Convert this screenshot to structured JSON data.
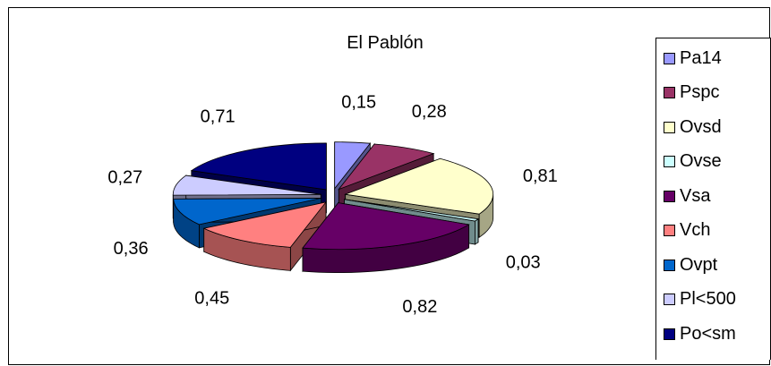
{
  "chart_data": {
    "type": "pie",
    "title": "El Pablón",
    "categories": [
      "Pa14",
      "Pspc",
      "Ovsd",
      "Ovse",
      "Vsa",
      "Vch",
      "Ovpt",
      "Pl<500",
      "Po<sm"
    ],
    "values": [
      0.15,
      0.28,
      0.81,
      0.03,
      0.82,
      0.45,
      0.36,
      0.27,
      0.71
    ],
    "value_labels": [
      "0,15",
      "0,28",
      "0,81",
      "0,03",
      "0,82",
      "0,45",
      "0,36",
      "0,27",
      "0,71"
    ],
    "colors": [
      "#9999ff",
      "#993366",
      "#ffffcc",
      "#ccffff",
      "#660066",
      "#ff8080",
      "#0066cc",
      "#ccccff",
      "#000080"
    ],
    "legend_position": "right",
    "style": "3d-exploded"
  }
}
